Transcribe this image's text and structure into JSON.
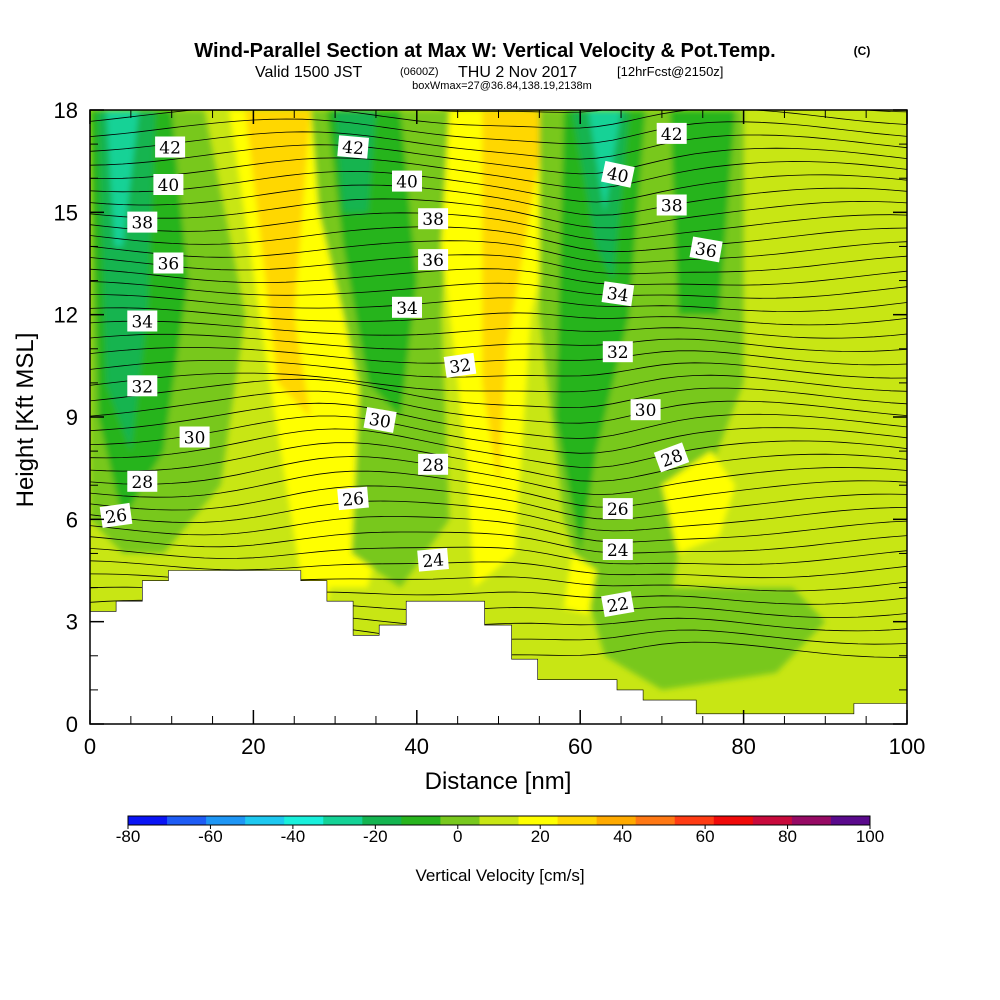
{
  "chart_data": {
    "type": "contour",
    "title_main": "Wind-Parallel Section at Max W: Vertical Velocity & Pot.Temp.",
    "title_mark": "(C)",
    "subtitle_valid": "Valid 1500 JST",
    "subtitle_z": "(0600Z)",
    "subtitle_date": "THU 2 Nov 2017",
    "subtitle_fcst": "[12hrFcst@2150z]",
    "subtitle_box": "boxWmax=27@36.84,138.19,2138m",
    "xlabel": "Distance [nm]",
    "ylabel": "Height [Kft MSL]",
    "xlim": [
      0,
      100
    ],
    "ylim": [
      0,
      18
    ],
    "xticks": [
      "0",
      "20",
      "40",
      "60",
      "80",
      "100"
    ],
    "yticks": [
      "0",
      "3",
      "6",
      "9",
      "12",
      "15",
      "18"
    ],
    "colorbar": {
      "label": "Vertical Velocity [cm/s]",
      "ticks": [
        "-80",
        "-60",
        "-40",
        "-20",
        "0",
        "20",
        "40",
        "60",
        "80",
        "100"
      ],
      "levels": [
        -80,
        -70,
        -60,
        -50,
        -40,
        -30,
        -20,
        -10,
        0,
        10,
        20,
        30,
        40,
        50,
        60,
        70,
        80,
        90,
        100
      ],
      "colors": [
        "#0a14f5",
        "#1e5cf5",
        "#1e96f5",
        "#1ec8f0",
        "#19f0dc",
        "#14d296",
        "#14b450",
        "#28b41e",
        "#78c81e",
        "#c8e614",
        "#ffff00",
        "#ffd700",
        "#ffaa00",
        "#ff7814",
        "#ff3c14",
        "#f00a0a",
        "#c80a3c",
        "#960a64",
        "#5a0a8c"
      ]
    },
    "theta_labels": [
      {
        "v": "42",
        "x": 9.8,
        "y": 16.9,
        "r": 0
      },
      {
        "v": "40",
        "x": 9.6,
        "y": 15.8,
        "r": 0
      },
      {
        "v": "38",
        "x": 6.4,
        "y": 14.7,
        "r": 0
      },
      {
        "v": "36",
        "x": 9.6,
        "y": 13.5,
        "r": 0
      },
      {
        "v": "34",
        "x": 6.4,
        "y": 11.8,
        "r": 0
      },
      {
        "v": "32",
        "x": 6.4,
        "y": 9.9,
        "r": 0
      },
      {
        "v": "30",
        "x": 12.8,
        "y": 8.4,
        "r": 0
      },
      {
        "v": "28",
        "x": 6.4,
        "y": 7.1,
        "r": 0
      },
      {
        "v": "26",
        "x": 3.2,
        "y": 6.1,
        "r": -8
      },
      {
        "v": "42",
        "x": 32.2,
        "y": 16.9,
        "r": 5
      },
      {
        "v": "40",
        "x": 38.8,
        "y": 15.9,
        "r": 0
      },
      {
        "v": "38",
        "x": 42.0,
        "y": 14.8,
        "r": 0
      },
      {
        "v": "36",
        "x": 42.0,
        "y": 13.6,
        "r": 0
      },
      {
        "v": "34",
        "x": 38.8,
        "y": 12.2,
        "r": 0
      },
      {
        "v": "32",
        "x": 45.3,
        "y": 10.5,
        "r": -8
      },
      {
        "v": "30",
        "x": 35.5,
        "y": 8.9,
        "r": 10
      },
      {
        "v": "28",
        "x": 42.0,
        "y": 7.6,
        "r": 0
      },
      {
        "v": "26",
        "x": 32.2,
        "y": 6.6,
        "r": -5
      },
      {
        "v": "24",
        "x": 42.0,
        "y": 4.8,
        "r": -5
      },
      {
        "v": "42",
        "x": 71.2,
        "y": 17.3,
        "r": 0
      },
      {
        "v": "40",
        "x": 64.6,
        "y": 16.1,
        "r": 12
      },
      {
        "v": "38",
        "x": 71.2,
        "y": 15.2,
        "r": 0
      },
      {
        "v": "36",
        "x": 75.4,
        "y": 13.9,
        "r": 10
      },
      {
        "v": "34",
        "x": 64.6,
        "y": 12.6,
        "r": 8
      },
      {
        "v": "32",
        "x": 64.6,
        "y": 10.9,
        "r": 0
      },
      {
        "v": "30",
        "x": 68.0,
        "y": 9.2,
        "r": 0
      },
      {
        "v": "28",
        "x": 71.2,
        "y": 7.8,
        "r": -20
      },
      {
        "v": "26",
        "x": 64.6,
        "y": 6.3,
        "r": 0
      },
      {
        "v": "24",
        "x": 64.6,
        "y": 5.1,
        "r": 0
      },
      {
        "v": "22",
        "x": 64.6,
        "y": 3.5,
        "r": -10
      }
    ]
  }
}
